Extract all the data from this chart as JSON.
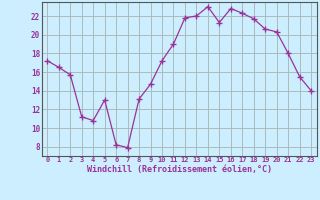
{
  "x": [
    0,
    1,
    2,
    3,
    4,
    5,
    6,
    7,
    8,
    9,
    10,
    11,
    12,
    13,
    14,
    15,
    16,
    17,
    18,
    19,
    20,
    21,
    22,
    23
  ],
  "y": [
    17.2,
    16.5,
    15.7,
    11.2,
    10.8,
    13.0,
    8.2,
    7.9,
    13.1,
    14.7,
    17.2,
    19.0,
    21.8,
    22.0,
    23.0,
    21.3,
    22.8,
    22.3,
    21.7,
    20.6,
    20.3,
    18.0,
    15.5,
    14.0
  ],
  "line_color": "#993399",
  "marker": "+",
  "marker_size": 4,
  "bg_color": "#cceeff",
  "grid_color": "#aabbbb",
  "xlabel": "Windchill (Refroidissement éolien,°C)",
  "xlabel_color": "#993399",
  "tick_color": "#993399",
  "ylim": [
    7,
    23.5
  ],
  "yticks": [
    8,
    10,
    12,
    14,
    16,
    18,
    20,
    22
  ],
  "xticks": [
    0,
    1,
    2,
    3,
    4,
    5,
    6,
    7,
    8,
    9,
    10,
    11,
    12,
    13,
    14,
    15,
    16,
    17,
    18,
    19,
    20,
    21,
    22,
    23
  ]
}
